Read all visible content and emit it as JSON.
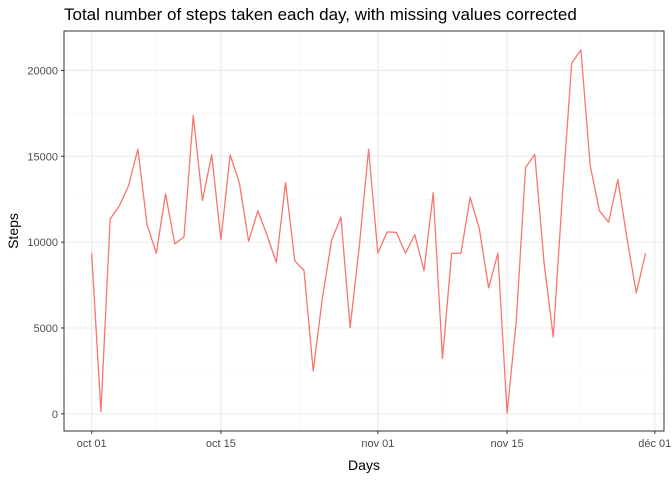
{
  "chart_data": {
    "type": "line",
    "title": "Total number of steps taken each day, with missing values corrected",
    "xlabel": "Days",
    "ylabel": "Steps",
    "x_axis": {
      "type": "date",
      "range": [
        "2012-09-28",
        "2012-12-02"
      ],
      "ticks": [
        {
          "value": "2012-10-01",
          "label": "oct 01"
        },
        {
          "value": "2012-10-15",
          "label": "oct 15"
        },
        {
          "value": "2012-11-01",
          "label": "nov 01"
        },
        {
          "value": "2012-11-15",
          "label": "nov 15"
        },
        {
          "value": "2012-12-01",
          "label": "déc 01"
        }
      ]
    },
    "y_axis": {
      "range": [
        -1000,
        22300
      ],
      "ticks": [
        {
          "value": 0,
          "label": "0"
        },
        {
          "value": 5000,
          "label": "5000"
        },
        {
          "value": 10000,
          "label": "10000"
        },
        {
          "value": 15000,
          "label": "15000"
        },
        {
          "value": 20000,
          "label": "20000"
        }
      ]
    },
    "grid": true,
    "legend": "none",
    "series": [
      {
        "color": "#f8766d",
        "points": [
          [
            "2012-10-01",
            9354
          ],
          [
            "2012-10-02",
            126
          ],
          [
            "2012-10-03",
            11352
          ],
          [
            "2012-10-04",
            12116
          ],
          [
            "2012-10-05",
            13294
          ],
          [
            "2012-10-06",
            15420
          ],
          [
            "2012-10-07",
            11015
          ],
          [
            "2012-10-08",
            9354
          ],
          [
            "2012-10-09",
            12811
          ],
          [
            "2012-10-10",
            9900
          ],
          [
            "2012-10-11",
            10304
          ],
          [
            "2012-10-12",
            17382
          ],
          [
            "2012-10-13",
            12426
          ],
          [
            "2012-10-14",
            15098
          ],
          [
            "2012-10-15",
            10139
          ],
          [
            "2012-10-16",
            15084
          ],
          [
            "2012-10-17",
            13452
          ],
          [
            "2012-10-18",
            10056
          ],
          [
            "2012-10-19",
            11829
          ],
          [
            "2012-10-20",
            10395
          ],
          [
            "2012-10-21",
            8821
          ],
          [
            "2012-10-22",
            13460
          ],
          [
            "2012-10-23",
            8918
          ],
          [
            "2012-10-24",
            8355
          ],
          [
            "2012-10-25",
            2492
          ],
          [
            "2012-10-26",
            6778
          ],
          [
            "2012-10-27",
            10119
          ],
          [
            "2012-10-28",
            11458
          ],
          [
            "2012-10-29",
            5018
          ],
          [
            "2012-10-30",
            9819
          ],
          [
            "2012-10-31",
            15414
          ],
          [
            "2012-11-01",
            9354
          ],
          [
            "2012-11-02",
            10600
          ],
          [
            "2012-11-03",
            10571
          ],
          [
            "2012-11-04",
            9354
          ],
          [
            "2012-11-05",
            10439
          ],
          [
            "2012-11-06",
            8334
          ],
          [
            "2012-11-07",
            12883
          ],
          [
            "2012-11-08",
            3219
          ],
          [
            "2012-11-09",
            9354
          ],
          [
            "2012-11-10",
            9354
          ],
          [
            "2012-11-11",
            12608
          ],
          [
            "2012-11-12",
            10765
          ],
          [
            "2012-11-13",
            7336
          ],
          [
            "2012-11-14",
            9354
          ],
          [
            "2012-11-15",
            41
          ],
          [
            "2012-11-16",
            5441
          ],
          [
            "2012-11-17",
            14339
          ],
          [
            "2012-11-18",
            15110
          ],
          [
            "2012-11-19",
            8841
          ],
          [
            "2012-11-20",
            4472
          ],
          [
            "2012-11-21",
            12787
          ],
          [
            "2012-11-22",
            20427
          ],
          [
            "2012-11-23",
            21194
          ],
          [
            "2012-11-24",
            14478
          ],
          [
            "2012-11-25",
            11834
          ],
          [
            "2012-11-26",
            11162
          ],
          [
            "2012-11-27",
            13646
          ],
          [
            "2012-11-28",
            10183
          ],
          [
            "2012-11-29",
            7047
          ],
          [
            "2012-11-30",
            9354
          ]
        ]
      }
    ]
  }
}
